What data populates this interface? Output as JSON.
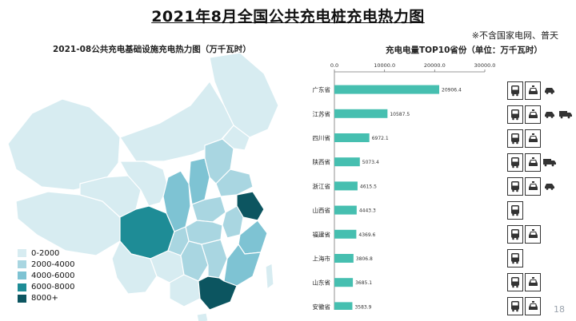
{
  "title": "2021年8月全国公共充电桩充电热力图",
  "note": "※不含国家电网、普天",
  "map": {
    "title": "2021-08公共充电基础设施充电热力图（万千瓦时）",
    "legend": [
      {
        "label": "0-2000",
        "color": "#d7ecf1"
      },
      {
        "label": "2000-4000",
        "color": "#a9d6e1"
      },
      {
        "label": "4000-6000",
        "color": "#7ec3d3"
      },
      {
        "label": "6000-8000",
        "color": "#1e8c96"
      },
      {
        "label": "8000+",
        "color": "#0c5560"
      }
    ]
  },
  "chart_data": {
    "type": "bar",
    "orientation": "horizontal",
    "title": "充电电量TOP10省份（单位：万千瓦时）",
    "categories": [
      "广东省",
      "江苏省",
      "四川省",
      "陕西省",
      "浙江省",
      "山西省",
      "福建省",
      "上海市",
      "山东省",
      "安徽省"
    ],
    "values": [
      20906.4,
      10587.5,
      6972.1,
      5073.4,
      4615.5,
      4443.3,
      4369.6,
      3806.8,
      3685.1,
      3583.9
    ],
    "value_labels": [
      "20906.4",
      "10587.5",
      "6972.1",
      "5073.4",
      "4615.5",
      "4443.3",
      "4369.6",
      "3806.8",
      "3685.1",
      "3583.9"
    ],
    "ticks": [
      "0.0",
      "10000.0",
      "20000.0",
      "30000.0"
    ],
    "xlim": [
      0,
      30000
    ],
    "axis_position": "top",
    "bar_color": "#46bfb0"
  },
  "icon_rows": [
    [
      "bus",
      "taxi",
      "car"
    ],
    [
      "bus",
      "taxi",
      "car",
      "truck"
    ],
    [
      "bus",
      "taxi"
    ],
    [
      "bus",
      "taxi",
      "truck"
    ],
    [
      "bus",
      "taxi",
      "car"
    ],
    [
      "bus"
    ],
    [
      "bus",
      "taxi"
    ],
    [
      "bus"
    ],
    [
      "bus",
      "taxi"
    ],
    [
      "bus",
      "taxi"
    ]
  ],
  "page_number": "18"
}
